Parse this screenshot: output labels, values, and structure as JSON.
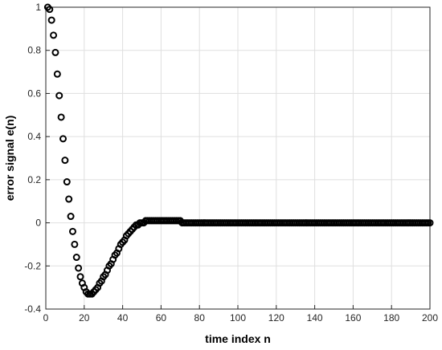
{
  "chart_data": {
    "type": "scatter",
    "xlabel": "time index n",
    "ylabel": "error signal e(n)",
    "xlim": [
      0,
      200
    ],
    "ylim": [
      -0.4,
      1
    ],
    "xticks": [
      0,
      20,
      40,
      60,
      80,
      100,
      120,
      140,
      160,
      180,
      200
    ],
    "yticks": [
      -0.4,
      -0.2,
      0,
      0.2,
      0.4,
      0.6,
      0.8,
      1
    ],
    "grid": true,
    "color": "#000000",
    "x": [
      1,
      2,
      3,
      4,
      5,
      6,
      7,
      8,
      9,
      10,
      11,
      12,
      13,
      14,
      15,
      16,
      17,
      18,
      19,
      20,
      21,
      22,
      23,
      24,
      25,
      26,
      27,
      28,
      29,
      30,
      31,
      32,
      33,
      34,
      35,
      36,
      37,
      38,
      39,
      40,
      41,
      42,
      43,
      44,
      45,
      46,
      47,
      48,
      49,
      50,
      51,
      52,
      53,
      54,
      55,
      56,
      57,
      58,
      59,
      60,
      61,
      62,
      63,
      64,
      65,
      66,
      67,
      68,
      69,
      70,
      71,
      72,
      73,
      74,
      75,
      76,
      77,
      78,
      79,
      80,
      81,
      82,
      83,
      84,
      85,
      86,
      87,
      88,
      89,
      90,
      91,
      92,
      93,
      94,
      95,
      96,
      97,
      98,
      99,
      100,
      101,
      102,
      103,
      104,
      105,
      106,
      107,
      108,
      109,
      110,
      111,
      112,
      113,
      114,
      115,
      116,
      117,
      118,
      119,
      120,
      121,
      122,
      123,
      124,
      125,
      126,
      127,
      128,
      129,
      130,
      131,
      132,
      133,
      134,
      135,
      136,
      137,
      138,
      139,
      140,
      141,
      142,
      143,
      144,
      145,
      146,
      147,
      148,
      149,
      150,
      151,
      152,
      153,
      154,
      155,
      156,
      157,
      158,
      159,
      160,
      161,
      162,
      163,
      164,
      165,
      166,
      167,
      168,
      169,
      170,
      171,
      172,
      173,
      174,
      175,
      176,
      177,
      178,
      179,
      180,
      181,
      182,
      183,
      184,
      185,
      186,
      187,
      188,
      189,
      190,
      191,
      192,
      193,
      194,
      195,
      196,
      197,
      198,
      199,
      200
    ],
    "values": [
      1.0,
      0.99,
      0.94,
      0.87,
      0.79,
      0.69,
      0.59,
      0.49,
      0.39,
      0.29,
      0.19,
      0.11,
      0.03,
      -0.04,
      -0.1,
      -0.16,
      -0.21,
      -0.25,
      -0.28,
      -0.3,
      -0.32,
      -0.33,
      -0.33,
      -0.33,
      -0.32,
      -0.31,
      -0.3,
      -0.28,
      -0.27,
      -0.25,
      -0.24,
      -0.22,
      -0.2,
      -0.19,
      -0.17,
      -0.15,
      -0.14,
      -0.12,
      -0.1,
      -0.09,
      -0.08,
      -0.06,
      -0.05,
      -0.04,
      -0.03,
      -0.02,
      -0.01,
      -0.01,
      0,
      0,
      0,
      0.01,
      0.01,
      0.01,
      0.01,
      0.01,
      0.01,
      0.01,
      0.01,
      0.01,
      0.01,
      0.01,
      0.01,
      0.01,
      0.01,
      0.01,
      0.01,
      0.01,
      0.01,
      0.01,
      0,
      0,
      0,
      0,
      0,
      0,
      0,
      0,
      0,
      0,
      0,
      0,
      0,
      0,
      0,
      0,
      0,
      0,
      0,
      0,
      0,
      0,
      0,
      0,
      0,
      0,
      0,
      0,
      0,
      0,
      0,
      0,
      0,
      0,
      0,
      0,
      0,
      0,
      0,
      0,
      0,
      0,
      0,
      0,
      0,
      0,
      0,
      0,
      0,
      0,
      0,
      0,
      0,
      0,
      0,
      0,
      0,
      0,
      0,
      0,
      0,
      0,
      0,
      0,
      0,
      0,
      0,
      0,
      0,
      0,
      0,
      0,
      0,
      0,
      0,
      0,
      0,
      0,
      0,
      0,
      0,
      0,
      0,
      0,
      0,
      0,
      0,
      0,
      0,
      0,
      0,
      0,
      0,
      0,
      0,
      0,
      0,
      0,
      0,
      0,
      0,
      0,
      0,
      0,
      0,
      0,
      0,
      0,
      0,
      0,
      0,
      0,
      0,
      0,
      0,
      0,
      0,
      0,
      0,
      0,
      0,
      0,
      0,
      0,
      0,
      0,
      0,
      0,
      0,
      0
    ]
  }
}
